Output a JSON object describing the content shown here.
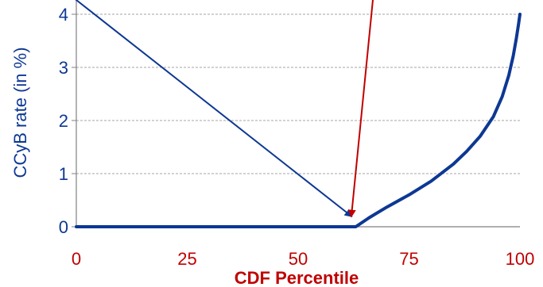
{
  "chart_data": {
    "type": "line",
    "title": "",
    "xlabel": "CDF Percentile",
    "ylabel": "CCyB rate (in %)",
    "xlim": [
      0,
      100
    ],
    "ylim": [
      0,
      4
    ],
    "x_ticks": [
      "0",
      "25",
      "50",
      "75",
      "100"
    ],
    "y_ticks": [
      "0",
      "1",
      "2",
      "3",
      "4"
    ],
    "grid": "horizontal dashed",
    "series": [
      {
        "x": [
          0,
          10,
          20,
          30,
          40,
          50,
          60,
          63,
          66,
          70,
          75,
          80,
          85,
          88,
          91,
          94,
          96,
          97.5,
          98.5,
          99.2,
          99.7,
          100
        ],
        "y": [
          0,
          0,
          0,
          0,
          0,
          0,
          0,
          0,
          0.17,
          0.37,
          0.6,
          0.86,
          1.18,
          1.42,
          1.7,
          2.07,
          2.45,
          2.85,
          3.22,
          3.55,
          3.82,
          4.0
        ]
      }
    ],
    "annotations": [
      {
        "type": "arrow",
        "color": "#0d3893",
        "from": [
          -2,
          4.4
        ],
        "to": [
          62,
          0.2
        ]
      },
      {
        "type": "arrow",
        "color": "#c00000",
        "from": [
          67,
          4.4
        ],
        "to": [
          62,
          0.2
        ]
      }
    ]
  },
  "colors": {
    "series": "#0d3893",
    "axis_text": "#0d3893",
    "x_text": "#c00000",
    "grid": "#a6a6a6",
    "arrow_blue": "#0d3893",
    "arrow_red": "#c00000"
  }
}
